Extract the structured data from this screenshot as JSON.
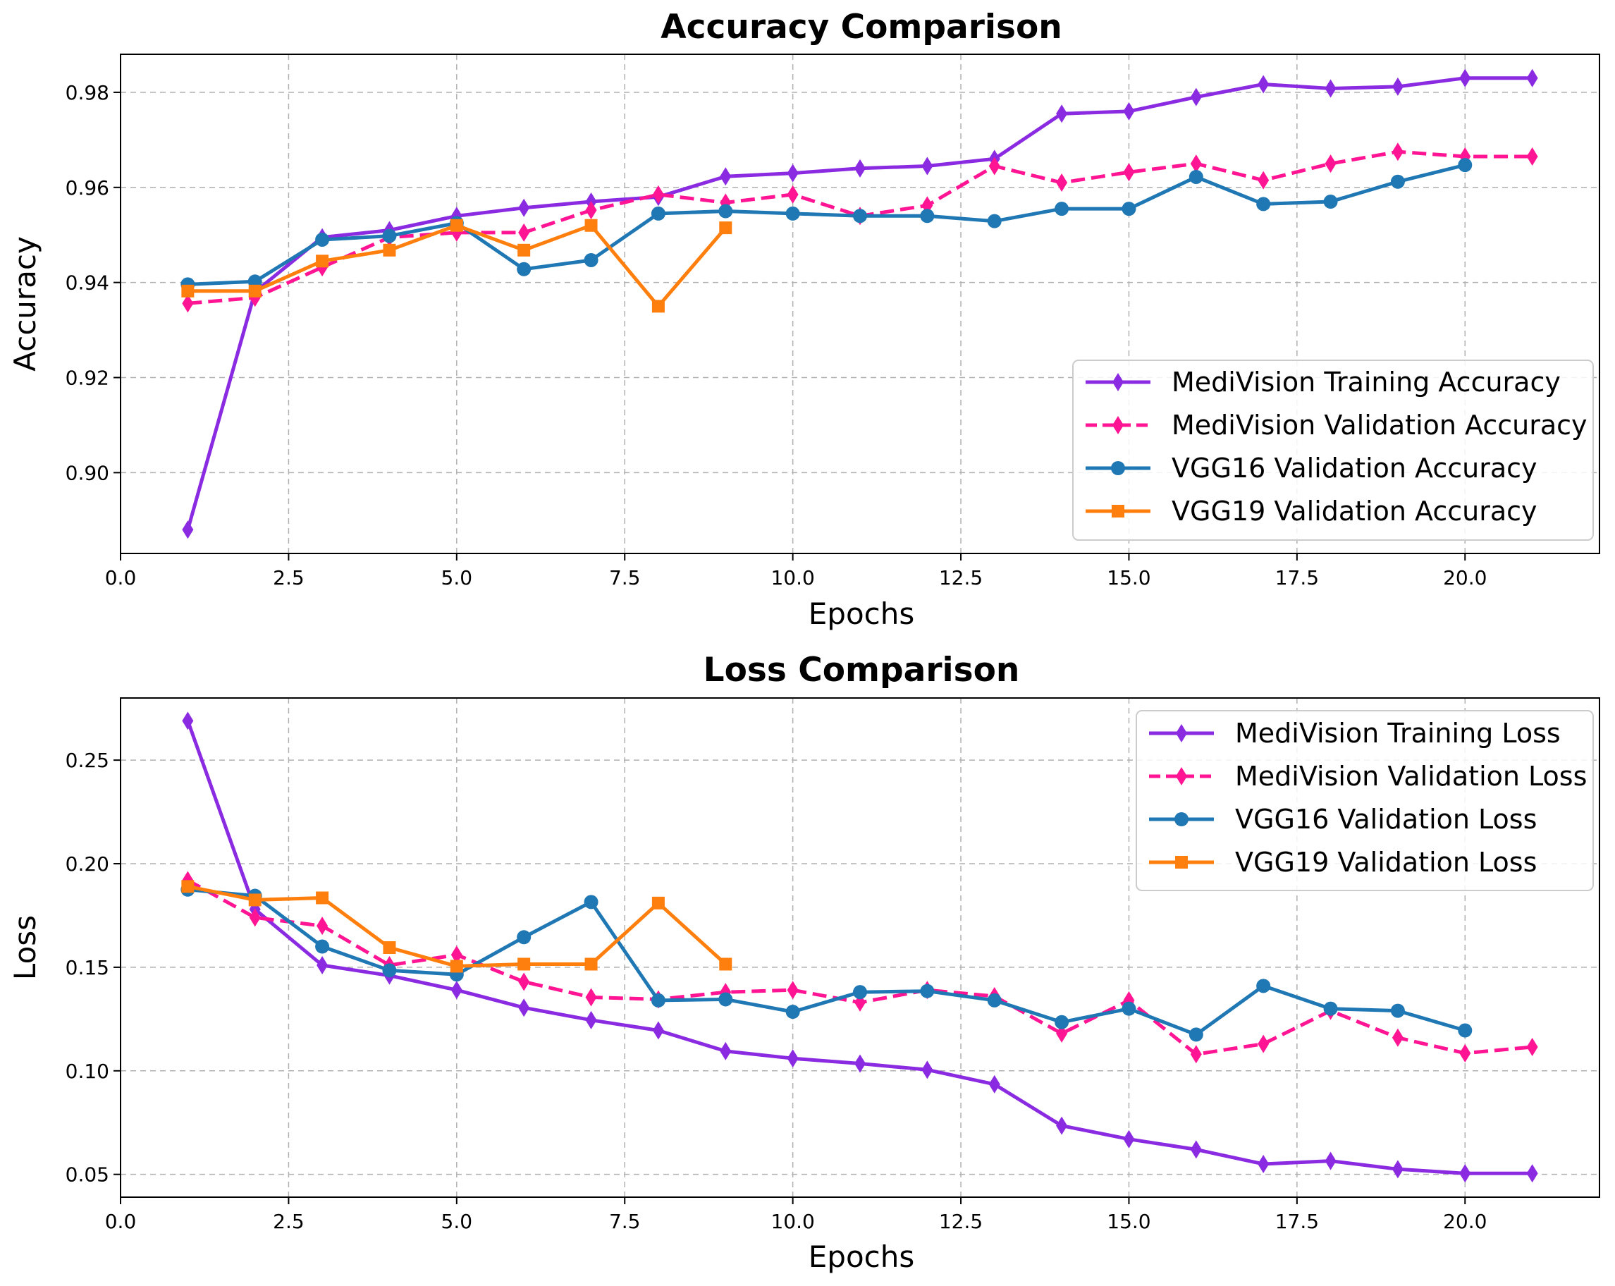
{
  "chart_data": [
    {
      "type": "line",
      "title": "Accuracy Comparison",
      "xlabel": "Epochs",
      "ylabel": "Accuracy",
      "xlim": [
        0,
        22
      ],
      "ylim": [
        0.883,
        0.988
      ],
      "xticks": [
        "0.0",
        "2.5",
        "5.0",
        "7.5",
        "10.0",
        "12.5",
        "15.0",
        "17.5",
        "20.0"
      ],
      "yticks": [
        "0.90",
        "0.92",
        "0.94",
        "0.96",
        "0.98"
      ],
      "grid": true,
      "legend_position": "lower-right",
      "series": [
        {
          "name": "MediVision Training Accuracy",
          "color": "#8a2be2",
          "dash": "solid",
          "marker": "diamond",
          "x": [
            1,
            2,
            3,
            4,
            5,
            6,
            7,
            8,
            9,
            10,
            11,
            12,
            13,
            14,
            15,
            16,
            17,
            18,
            19,
            20,
            21
          ],
          "values": [
            0.888,
            0.938,
            0.9495,
            0.951,
            0.954,
            0.9557,
            0.957,
            0.958,
            0.9623,
            0.963,
            0.964,
            0.9645,
            0.966,
            0.9755,
            0.976,
            0.979,
            0.9817,
            0.9808,
            0.9812,
            0.983,
            0.983
          ]
        },
        {
          "name": "MediVision Validation Accuracy",
          "color": "#ff1493",
          "dash": "dashed",
          "marker": "diamond",
          "x": [
            1,
            2,
            3,
            4,
            5,
            6,
            7,
            8,
            9,
            10,
            11,
            12,
            13,
            14,
            15,
            16,
            17,
            18,
            19,
            20,
            21
          ],
          "values": [
            0.9356,
            0.9368,
            0.9432,
            0.9495,
            0.9505,
            0.9505,
            0.9552,
            0.9585,
            0.9568,
            0.9585,
            0.954,
            0.9562,
            0.9645,
            0.961,
            0.9632,
            0.965,
            0.9615,
            0.965,
            0.9675,
            0.9665,
            0.9665
          ]
        },
        {
          "name": "VGG16 Validation Accuracy",
          "color": "#1f77b4",
          "dash": "solid",
          "marker": "circle",
          "x": [
            1,
            2,
            3,
            4,
            5,
            6,
            7,
            8,
            9,
            10,
            11,
            12,
            13,
            14,
            15,
            16,
            17,
            18,
            19,
            20
          ],
          "values": [
            0.9396,
            0.9402,
            0.949,
            0.9498,
            0.9525,
            0.9428,
            0.9447,
            0.9545,
            0.955,
            0.9545,
            0.954,
            0.954,
            0.9529,
            0.9555,
            0.9555,
            0.9622,
            0.9565,
            0.957,
            0.9612,
            0.9647
          ]
        },
        {
          "name": "VGG19 Validation Accuracy",
          "color": "#ff7f0e",
          "dash": "solid",
          "marker": "square",
          "x": [
            1,
            2,
            3,
            4,
            5,
            6,
            7,
            8,
            9
          ],
          "values": [
            0.9382,
            0.9382,
            0.9445,
            0.9468,
            0.952,
            0.9468,
            0.952,
            0.935,
            0.9515
          ]
        }
      ]
    },
    {
      "type": "line",
      "title": "Loss Comparison",
      "xlabel": "Epochs",
      "ylabel": "Loss",
      "xlim": [
        0,
        22
      ],
      "ylim": [
        0.039,
        0.28
      ],
      "xticks": [
        "0.0",
        "2.5",
        "5.0",
        "7.5",
        "10.0",
        "12.5",
        "15.0",
        "17.5",
        "20.0"
      ],
      "yticks": [
        "0.05",
        "0.10",
        "0.15",
        "0.20",
        "0.25"
      ],
      "grid": true,
      "legend_position": "upper-right",
      "series": [
        {
          "name": "MediVision Training Loss",
          "color": "#8a2be2",
          "dash": "solid",
          "marker": "diamond",
          "x": [
            1,
            2,
            3,
            4,
            5,
            6,
            7,
            8,
            9,
            10,
            11,
            12,
            13,
            14,
            15,
            16,
            17,
            18,
            19,
            20,
            21
          ],
          "values": [
            0.269,
            0.178,
            0.151,
            0.146,
            0.139,
            0.1305,
            0.1245,
            0.1195,
            0.1095,
            0.106,
            0.1035,
            0.1005,
            0.0935,
            0.0735,
            0.067,
            0.062,
            0.055,
            0.0565,
            0.0525,
            0.0505,
            0.0505
          ]
        },
        {
          "name": "MediVision Validation Loss",
          "color": "#ff1493",
          "dash": "dashed",
          "marker": "diamond",
          "x": [
            1,
            2,
            3,
            4,
            5,
            6,
            7,
            8,
            9,
            10,
            11,
            12,
            13,
            14,
            15,
            16,
            17,
            18,
            19,
            20,
            21
          ],
          "values": [
            0.192,
            0.174,
            0.17,
            0.151,
            0.156,
            0.143,
            0.1355,
            0.1345,
            0.138,
            0.139,
            0.133,
            0.139,
            0.136,
            0.118,
            0.134,
            0.108,
            0.113,
            0.129,
            0.116,
            0.1085,
            0.1115
          ]
        },
        {
          "name": "VGG16 Validation Loss",
          "color": "#1f77b4",
          "dash": "solid",
          "marker": "circle",
          "x": [
            1,
            2,
            3,
            4,
            5,
            6,
            7,
            8,
            9,
            10,
            11,
            12,
            13,
            14,
            15,
            16,
            17,
            18,
            19,
            20
          ],
          "values": [
            0.1875,
            0.1845,
            0.16,
            0.1485,
            0.1465,
            0.1645,
            0.1815,
            0.134,
            0.1345,
            0.1285,
            0.138,
            0.1385,
            0.134,
            0.1235,
            0.13,
            0.1175,
            0.141,
            0.13,
            0.129,
            0.1195
          ]
        },
        {
          "name": "VGG19 Validation Loss",
          "color": "#ff7f0e",
          "dash": "solid",
          "marker": "square",
          "x": [
            1,
            2,
            3,
            4,
            5,
            6,
            7,
            8,
            9
          ],
          "values": [
            0.189,
            0.1825,
            0.1835,
            0.1595,
            0.1505,
            0.1515,
            0.1515,
            0.181,
            0.1515
          ]
        }
      ]
    }
  ]
}
